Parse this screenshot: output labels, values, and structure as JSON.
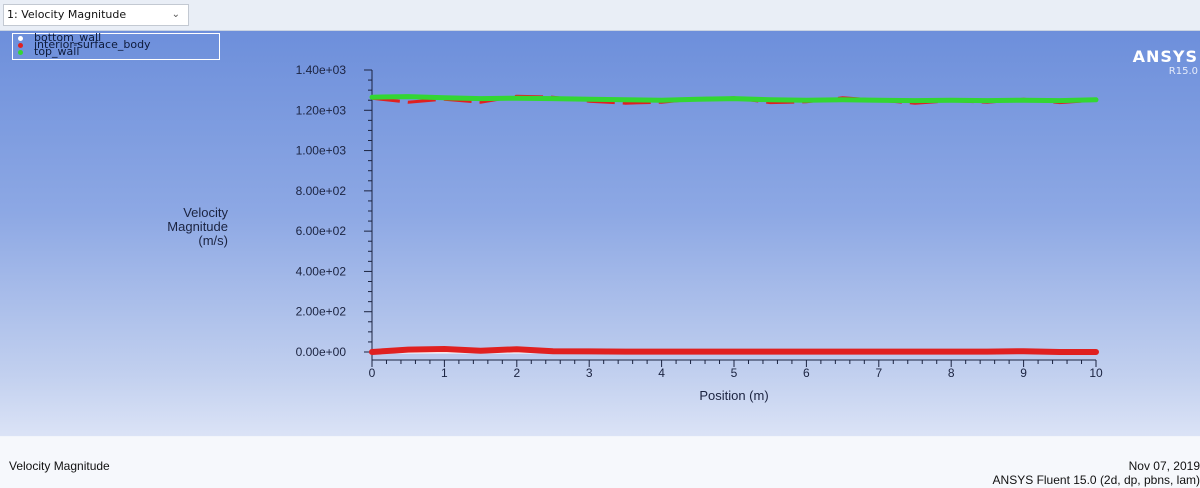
{
  "toolbar": {
    "plot_select": "1: Velocity Magnitude"
  },
  "legend": [
    {
      "name": "bottom_wall",
      "color": "#ffffff"
    },
    {
      "name": "interior-surface_body",
      "color": "#e02020"
    },
    {
      "name": "top_wall",
      "color": "#33d633"
    }
  ],
  "brand": {
    "name": "ANSYS",
    "version": "R15.0"
  },
  "footer": {
    "title": "Velocity Magnitude",
    "date": "Nov 07, 2019",
    "solver": "ANSYS Fluent 15.0 (2d, dp, pbns, lam)"
  },
  "chart_data": {
    "type": "scatter",
    "xlabel": "Position (m)",
    "ylabel": [
      "Velocity",
      "Magnitude",
      "(m/s)"
    ],
    "xlim": [
      0,
      10
    ],
    "ylim": [
      0,
      1400
    ],
    "xticks": [
      0,
      1,
      2,
      3,
      4,
      5,
      6,
      7,
      8,
      9,
      10
    ],
    "yticks": [
      {
        "value": 0,
        "label": "0.00e+00"
      },
      {
        "value": 200,
        "label": "2.00e+02"
      },
      {
        "value": 400,
        "label": "4.00e+02"
      },
      {
        "value": 600,
        "label": "6.00e+02"
      },
      {
        "value": 800,
        "label": "8.00e+02"
      },
      {
        "value": 1000,
        "label": "1.00e+03"
      },
      {
        "value": 1200,
        "label": "1.20e+03"
      },
      {
        "value": 1400,
        "label": "1.40e+03"
      }
    ],
    "series": [
      {
        "name": "bottom_wall",
        "color": "#ffffff",
        "x": [
          0,
          1,
          2,
          3,
          4,
          5,
          6,
          7,
          8,
          9,
          10
        ],
        "y": [
          0,
          0,
          0,
          0,
          0,
          0,
          0,
          0,
          0,
          0,
          0
        ]
      },
      {
        "name": "interior-surface_body",
        "color": "#e02020",
        "x": [
          0,
          0.5,
          1,
          1.5,
          2,
          2.5,
          3,
          3.5,
          4,
          4.5,
          5,
          5.5,
          6,
          6.5,
          7,
          7.5,
          8,
          8.5,
          9,
          9.5,
          10
        ],
        "y": [
          1260,
          1240,
          1255,
          1240,
          1270,
          1265,
          1245,
          1235,
          1240,
          1258,
          1262,
          1238,
          1242,
          1262,
          1250,
          1235,
          1248,
          1240,
          1255,
          1238,
          1250
        ],
        "y_bottom": [
          0,
          12,
          15,
          6,
          14,
          4,
          3,
          2,
          2,
          2,
          2,
          2,
          2,
          2,
          2,
          2,
          2,
          2,
          4,
          0,
          0
        ]
      },
      {
        "name": "top_wall",
        "color": "#33d633",
        "x": [
          0,
          0.5,
          1,
          1.5,
          2,
          2.5,
          3,
          3.5,
          4,
          4.5,
          5,
          5.5,
          6,
          6.5,
          7,
          7.5,
          8,
          8.5,
          9,
          9.5,
          10
        ],
        "y": [
          1265,
          1268,
          1262,
          1258,
          1260,
          1258,
          1255,
          1252,
          1250,
          1255,
          1258,
          1252,
          1250,
          1252,
          1250,
          1248,
          1250,
          1248,
          1250,
          1248,
          1252
        ]
      }
    ]
  }
}
